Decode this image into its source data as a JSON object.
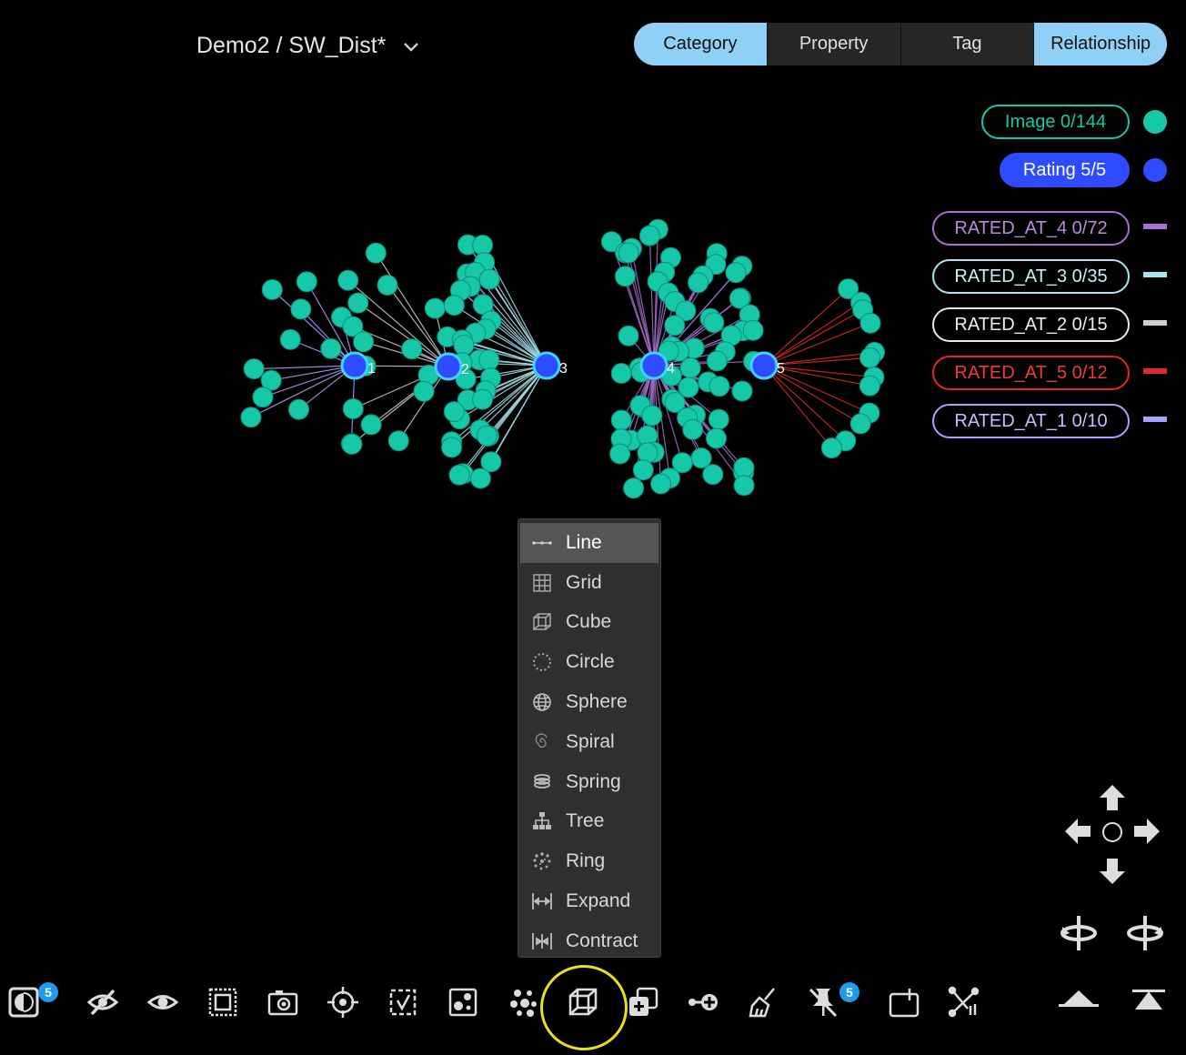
{
  "header": {
    "title": "Demo2 / SW_Dist*"
  },
  "tabs": [
    {
      "label": "Category",
      "active": true
    },
    {
      "label": "Property",
      "active": false
    },
    {
      "label": "Tag",
      "active": false
    },
    {
      "label": "Relationship",
      "active": true
    }
  ],
  "legend": {
    "nodes": [
      {
        "label": "Image 0/144",
        "color": "#16c7a8",
        "filled": false
      },
      {
        "label": "Rating 5/5",
        "color": "#2f4bff",
        "filled": true
      }
    ],
    "edges": [
      {
        "label": "RATED_AT_4 0/72",
        "color": "#a66fd0"
      },
      {
        "label": "RATED_AT_3 0/35",
        "color": "#a9e3ef"
      },
      {
        "label": "RATED_AT_2 0/15",
        "color": "#cfcfcf"
      },
      {
        "label": "RATED_AT_5 0/12",
        "color": "#e02828"
      },
      {
        "label": "RATED_AT_1 0/10",
        "color": "#a8a2ff"
      }
    ]
  },
  "graph": {
    "hub_labels": [
      "1",
      "2",
      "3",
      "4",
      "5"
    ],
    "node_color": "#16c7a8",
    "hub_color": "#2f4bff"
  },
  "layout_menu": {
    "items": [
      {
        "label": "Line",
        "icon": "line-icon",
        "selected": true
      },
      {
        "label": "Grid",
        "icon": "grid-icon"
      },
      {
        "label": "Cube",
        "icon": "cube-icon"
      },
      {
        "label": "Circle",
        "icon": "circle-icon"
      },
      {
        "label": "Sphere",
        "icon": "sphere-icon"
      },
      {
        "label": "Spiral",
        "icon": "spiral-icon"
      },
      {
        "label": "Spring",
        "icon": "spring-icon"
      },
      {
        "label": "Tree",
        "icon": "tree-icon"
      },
      {
        "label": "Ring",
        "icon": "ring-icon"
      },
      {
        "label": "Expand",
        "icon": "expand-icon"
      },
      {
        "label": "Contract",
        "icon": "contract-icon"
      }
    ]
  },
  "toolbar": {
    "contrast_badge": "5",
    "pin_badge": "5",
    "tools": [
      "contrast-icon",
      "hide-icon",
      "show-icon",
      "select-box-icon",
      "camera-icon",
      "target-icon",
      "select-check-icon",
      "image-select-icon",
      "cluster-icon",
      "layout-cube-icon",
      "add-layer-icon",
      "add-link-icon",
      "clean-icon",
      "pin-off-icon",
      "tablet-icon",
      "merge-icon"
    ]
  }
}
